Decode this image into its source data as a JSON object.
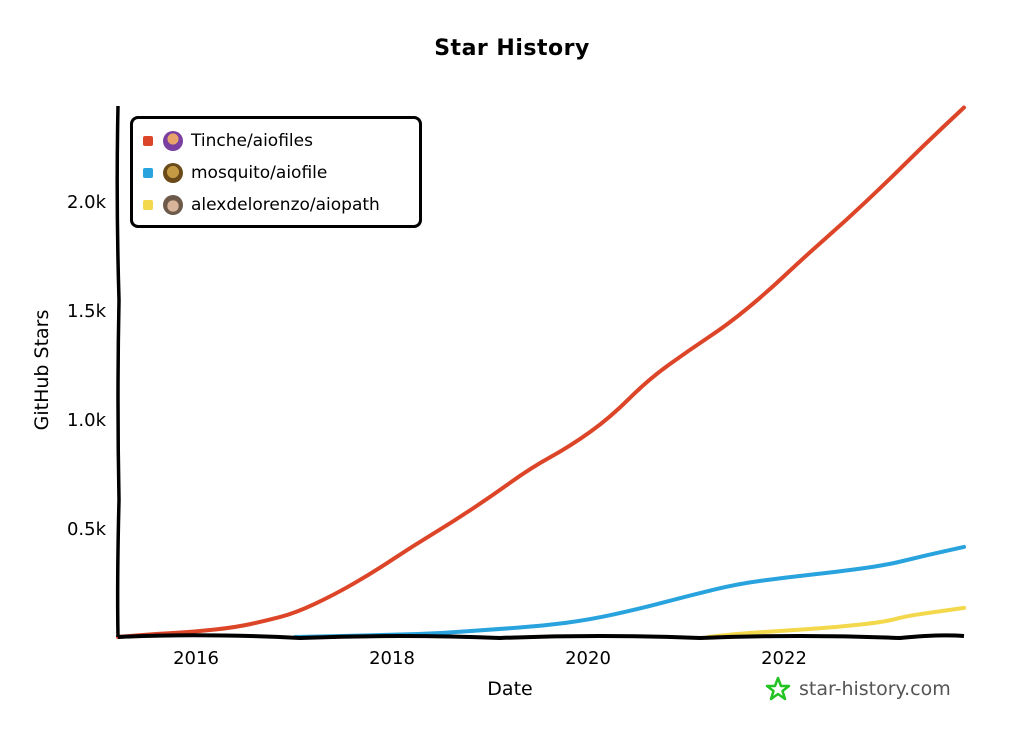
{
  "chart_data": {
    "type": "line",
    "title": "Star History",
    "xlabel": "Date",
    "ylabel": "GitHub Stars",
    "x_ticks": [
      "2016",
      "2018",
      "2020",
      "2022"
    ],
    "y_ticks": [
      "0.5k",
      "1.0k",
      "1.5k",
      "2.0k"
    ],
    "xlim": [
      2015.2,
      2023.8
    ],
    "ylim": [
      0,
      2450
    ],
    "grid": false,
    "legend_position": "top-left",
    "series": [
      {
        "name": "Tinche/aiofiles",
        "color": "#dd4528",
        "x": [
          2015.2,
          2015.6,
          2016.0,
          2016.4,
          2016.7,
          2017.0,
          2017.4,
          2017.8,
          2018.2,
          2018.6,
          2019.0,
          2019.4,
          2019.8,
          2020.2,
          2020.6,
          2021.0,
          2021.4,
          2021.8,
          2022.2,
          2022.6,
          2023.0,
          2023.4,
          2023.8
        ],
        "y": [
          0,
          15,
          25,
          45,
          75,
          110,
          195,
          300,
          420,
          530,
          650,
          780,
          880,
          1010,
          1190,
          1320,
          1440,
          1590,
          1760,
          1920,
          2090,
          2270,
          2440
        ]
      },
      {
        "name": "mosquito/aiofile",
        "color": "#28a3dd",
        "x": [
          2017.0,
          2017.5,
          2018.0,
          2018.5,
          2019.0,
          2019.5,
          2020.0,
          2020.5,
          2021.0,
          2021.5,
          2022.0,
          2022.5,
          2023.0,
          2023.4,
          2023.8
        ],
        "y": [
          0,
          5,
          10,
          18,
          35,
          50,
          80,
          130,
          190,
          245,
          275,
          300,
          330,
          375,
          415
        ]
      },
      {
        "name": "alexdelorenzo/aiopath",
        "color": "#f4d84c",
        "x": [
          2021.2,
          2021.5,
          2022.0,
          2022.5,
          2023.0,
          2023.2,
          2023.5,
          2023.8
        ],
        "y": [
          0,
          15,
          30,
          45,
          70,
          95,
          115,
          134
        ]
      }
    ]
  },
  "watermark": "star-history.com"
}
